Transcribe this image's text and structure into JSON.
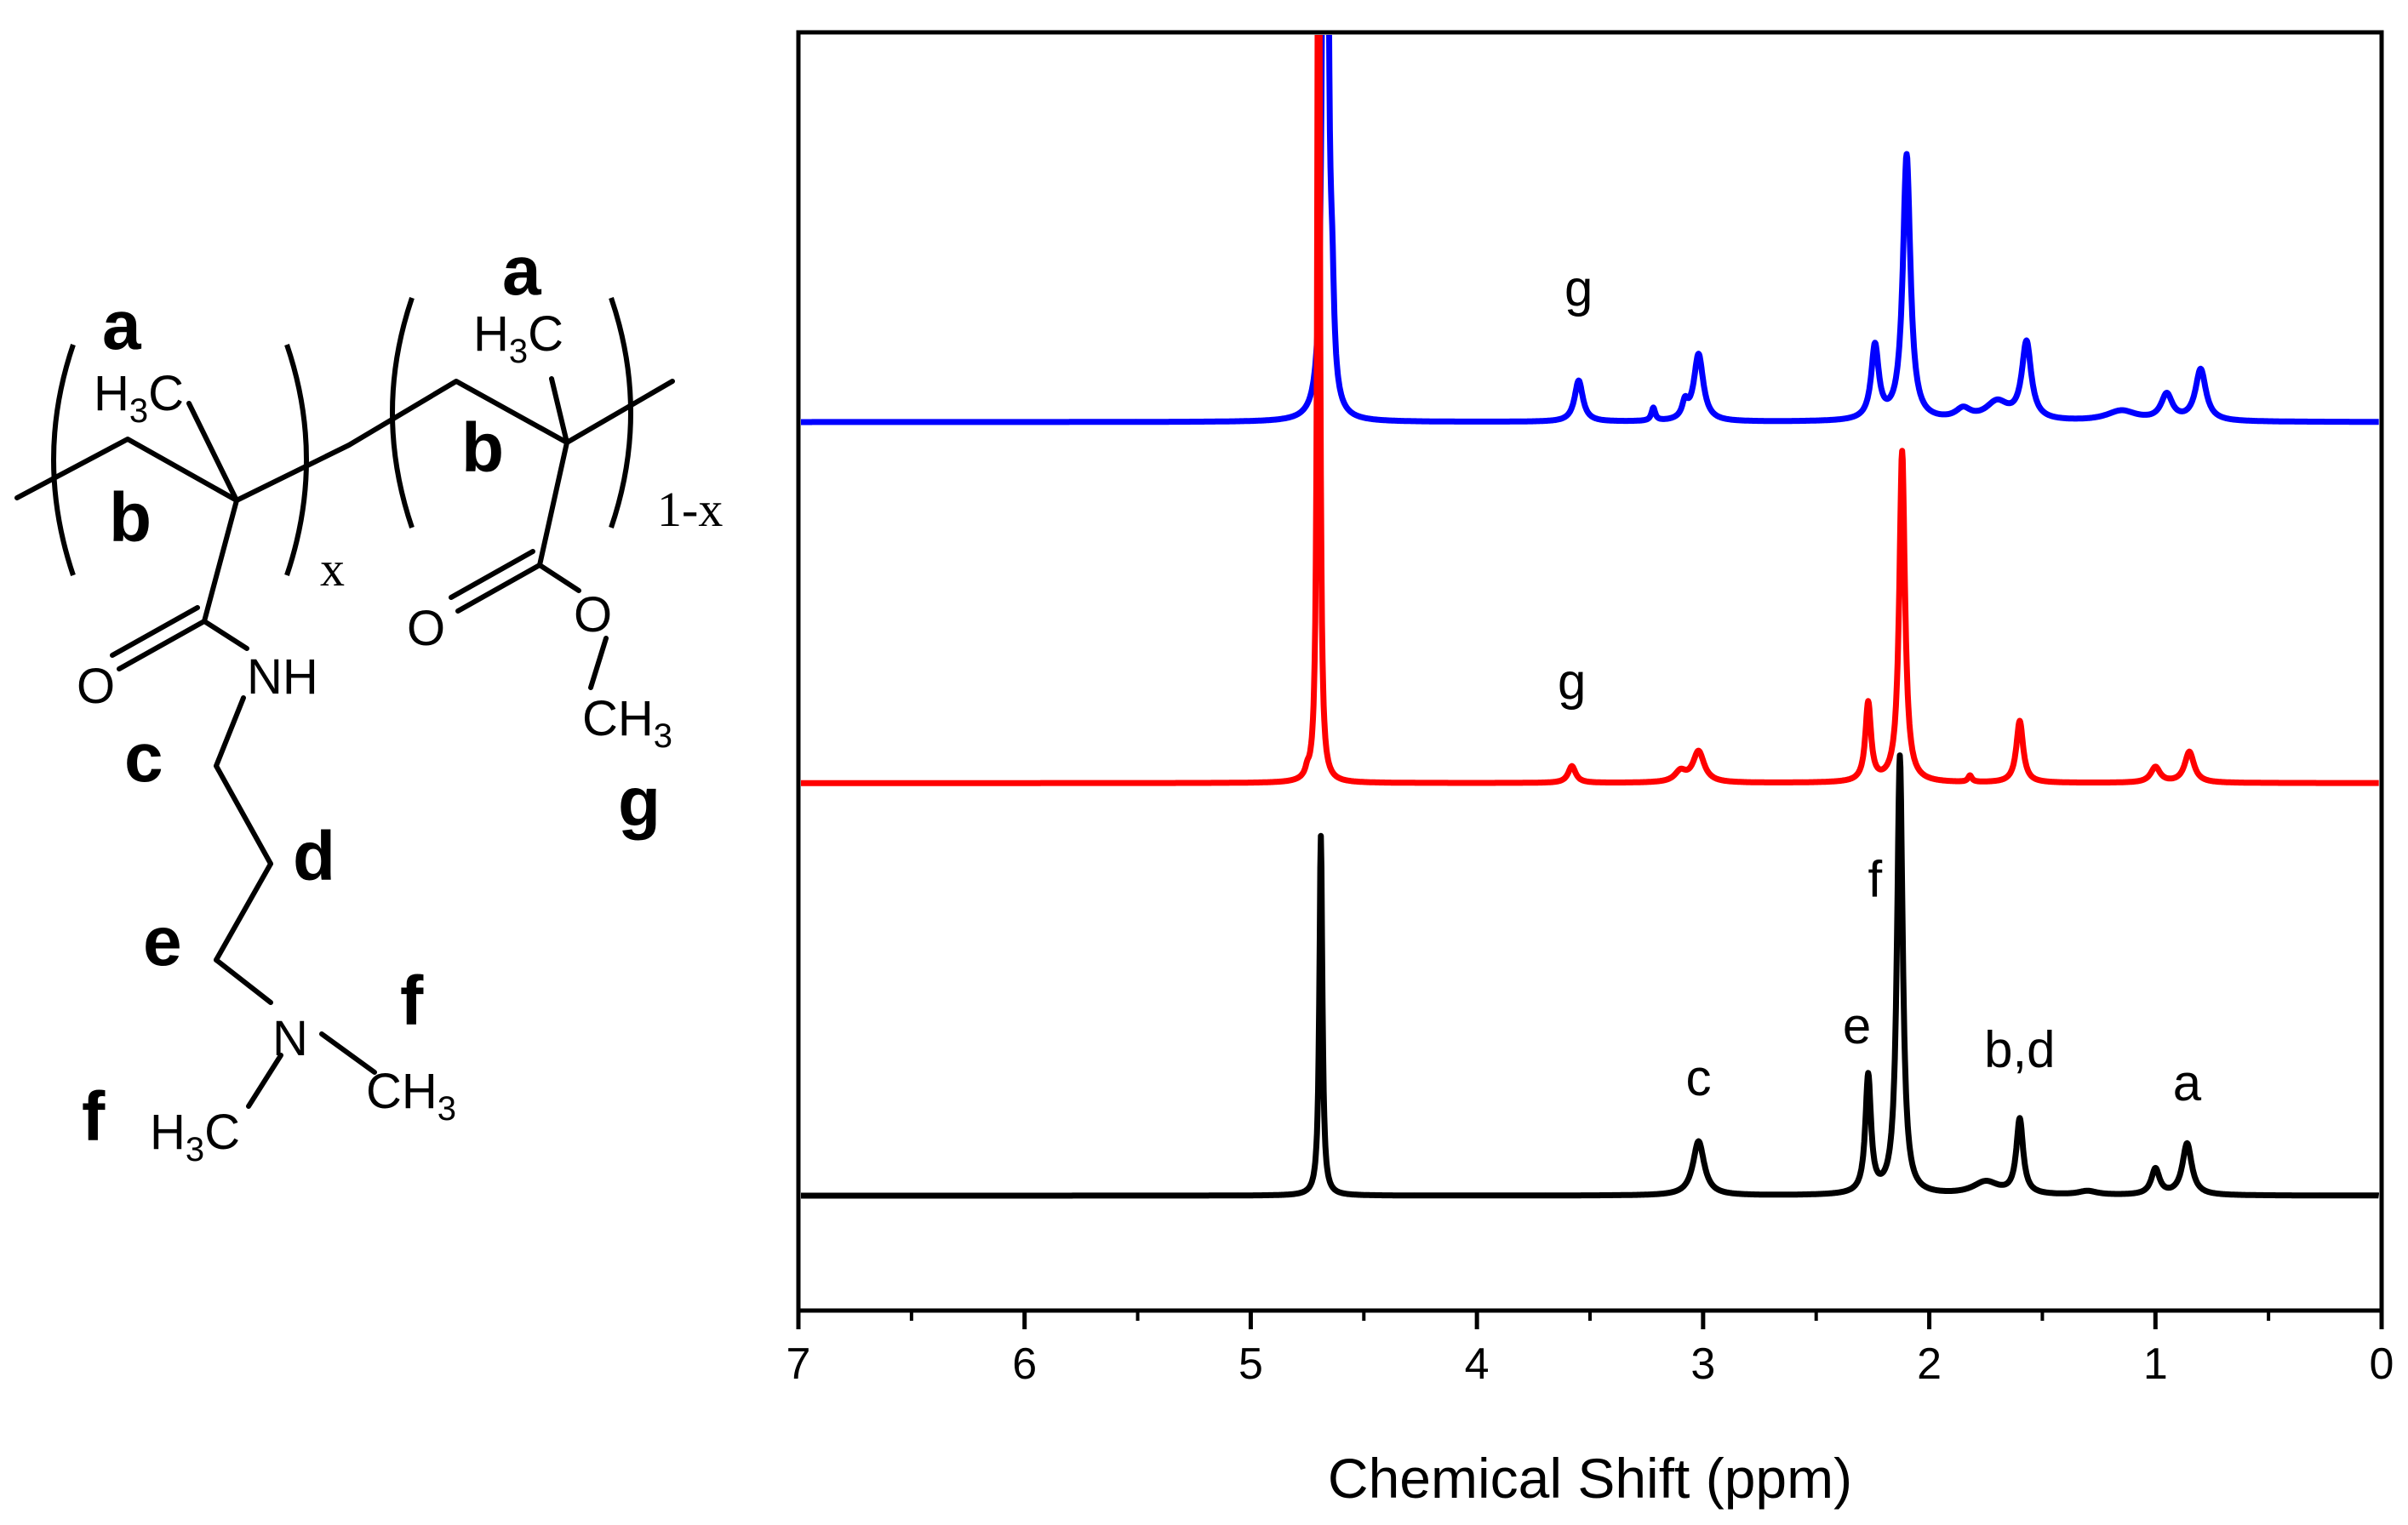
{
  "structure": {
    "subscript_x": "x",
    "subscript_1x": "1-x",
    "atoms": {
      "h3c_1": "H3C",
      "h3c_2": "H3C",
      "o_amide": "O",
      "nh": "NH",
      "n": "N",
      "ch3_n": "CH3",
      "h3c_n": "H3C",
      "o_ester_dbl": "O",
      "o_ester": "O",
      "ch3_ester": "CH3"
    },
    "proton_labels": {
      "a1": "a",
      "b1": "b",
      "c": "c",
      "d": "d",
      "e": "e",
      "f1": "f",
      "f2": "f",
      "a2": "a",
      "b2": "b",
      "g": "g"
    }
  },
  "chart_data": {
    "type": "line",
    "xlabel": "Chemical Shift (ppm)",
    "xlim": [
      7,
      0
    ],
    "x_reversed": true,
    "x_ticks": [
      7,
      6,
      5,
      4,
      3,
      2,
      1,
      0
    ],
    "x_minor_tick_step": 0.5,
    "y_axis_shown_values": false,
    "offset_units": "arbitrary intensity (stacked, offset)",
    "series": [
      {
        "color": "#0000ff",
        "baseline": 0.6,
        "peaks": [
          {
            "x": 4.67,
            "h": 1.8,
            "w": 0.007
          },
          {
            "x": 4.64,
            "h": 0.06,
            "w": 0.01
          },
          {
            "x": 3.55,
            "h": 0.032,
            "w": 0.022
          },
          {
            "x": 3.22,
            "h": 0.01,
            "w": 0.01
          },
          {
            "x": 3.02,
            "h": 0.052,
            "w": 0.025
          },
          {
            "x": 3.08,
            "h": 0.012,
            "w": 0.015
          },
          {
            "x": 2.24,
            "h": 0.057,
            "w": 0.02
          },
          {
            "x": 2.1,
            "h": 0.206,
            "w": 0.02
          },
          {
            "x": 1.57,
            "h": 0.06,
            "w": 0.025
          },
          {
            "x": 1.85,
            "h": 0.008,
            "w": 0.04
          },
          {
            "x": 1.7,
            "h": 0.014,
            "w": 0.06
          },
          {
            "x": 1.15,
            "h": 0.008,
            "w": 0.08
          },
          {
            "x": 0.95,
            "h": 0.02,
            "w": 0.03
          },
          {
            "x": 0.8,
            "h": 0.04,
            "w": 0.028
          }
        ]
      },
      {
        "color": "#ff0000",
        "baseline": 0.32,
        "peaks": [
          {
            "x": 4.7,
            "h": 0.9,
            "w": 0.006
          },
          {
            "x": 4.75,
            "h": 0.005,
            "w": 0.01
          },
          {
            "x": 3.58,
            "h": 0.013,
            "w": 0.02
          },
          {
            "x": 3.02,
            "h": 0.024,
            "w": 0.03
          },
          {
            "x": 3.1,
            "h": 0.008,
            "w": 0.03
          },
          {
            "x": 2.27,
            "h": 0.061,
            "w": 0.015
          },
          {
            "x": 2.12,
            "h": 0.257,
            "w": 0.015
          },
          {
            "x": 1.82,
            "h": 0.005,
            "w": 0.01
          },
          {
            "x": 1.6,
            "h": 0.048,
            "w": 0.018
          },
          {
            "x": 1.0,
            "h": 0.012,
            "w": 0.025
          },
          {
            "x": 0.85,
            "h": 0.024,
            "w": 0.025
          }
        ]
      },
      {
        "color": "#000000",
        "baseline": 0.0,
        "peaks": [
          {
            "x": 4.69,
            "h": 0.279,
            "w": 0.008
          },
          {
            "x": 3.02,
            "h": 0.042,
            "w": 0.03
          },
          {
            "x": 2.27,
            "h": 0.091,
            "w": 0.015
          },
          {
            "x": 2.13,
            "h": 0.34,
            "w": 0.015
          },
          {
            "x": 1.6,
            "h": 0.058,
            "w": 0.018
          },
          {
            "x": 1.75,
            "h": 0.01,
            "w": 0.07
          },
          {
            "x": 1.3,
            "h": 0.003,
            "w": 0.05
          },
          {
            "x": 1.0,
            "h": 0.02,
            "w": 0.022
          },
          {
            "x": 0.86,
            "h": 0.04,
            "w": 0.025
          }
        ]
      }
    ],
    "annotations": [
      {
        "text": "g",
        "x": 3.55,
        "y": 0.69
      },
      {
        "text": "g",
        "x": 3.58,
        "y": 0.385
      },
      {
        "text": "c",
        "x": 3.02,
        "y": 0.078
      },
      {
        "text": "e",
        "x": 2.32,
        "y": 0.118
      },
      {
        "text": "f",
        "x": 2.24,
        "y": 0.232
      },
      {
        "text": "b,d",
        "x": 1.6,
        "y": 0.1
      },
      {
        "text": "a",
        "x": 0.86,
        "y": 0.074
      }
    ]
  }
}
